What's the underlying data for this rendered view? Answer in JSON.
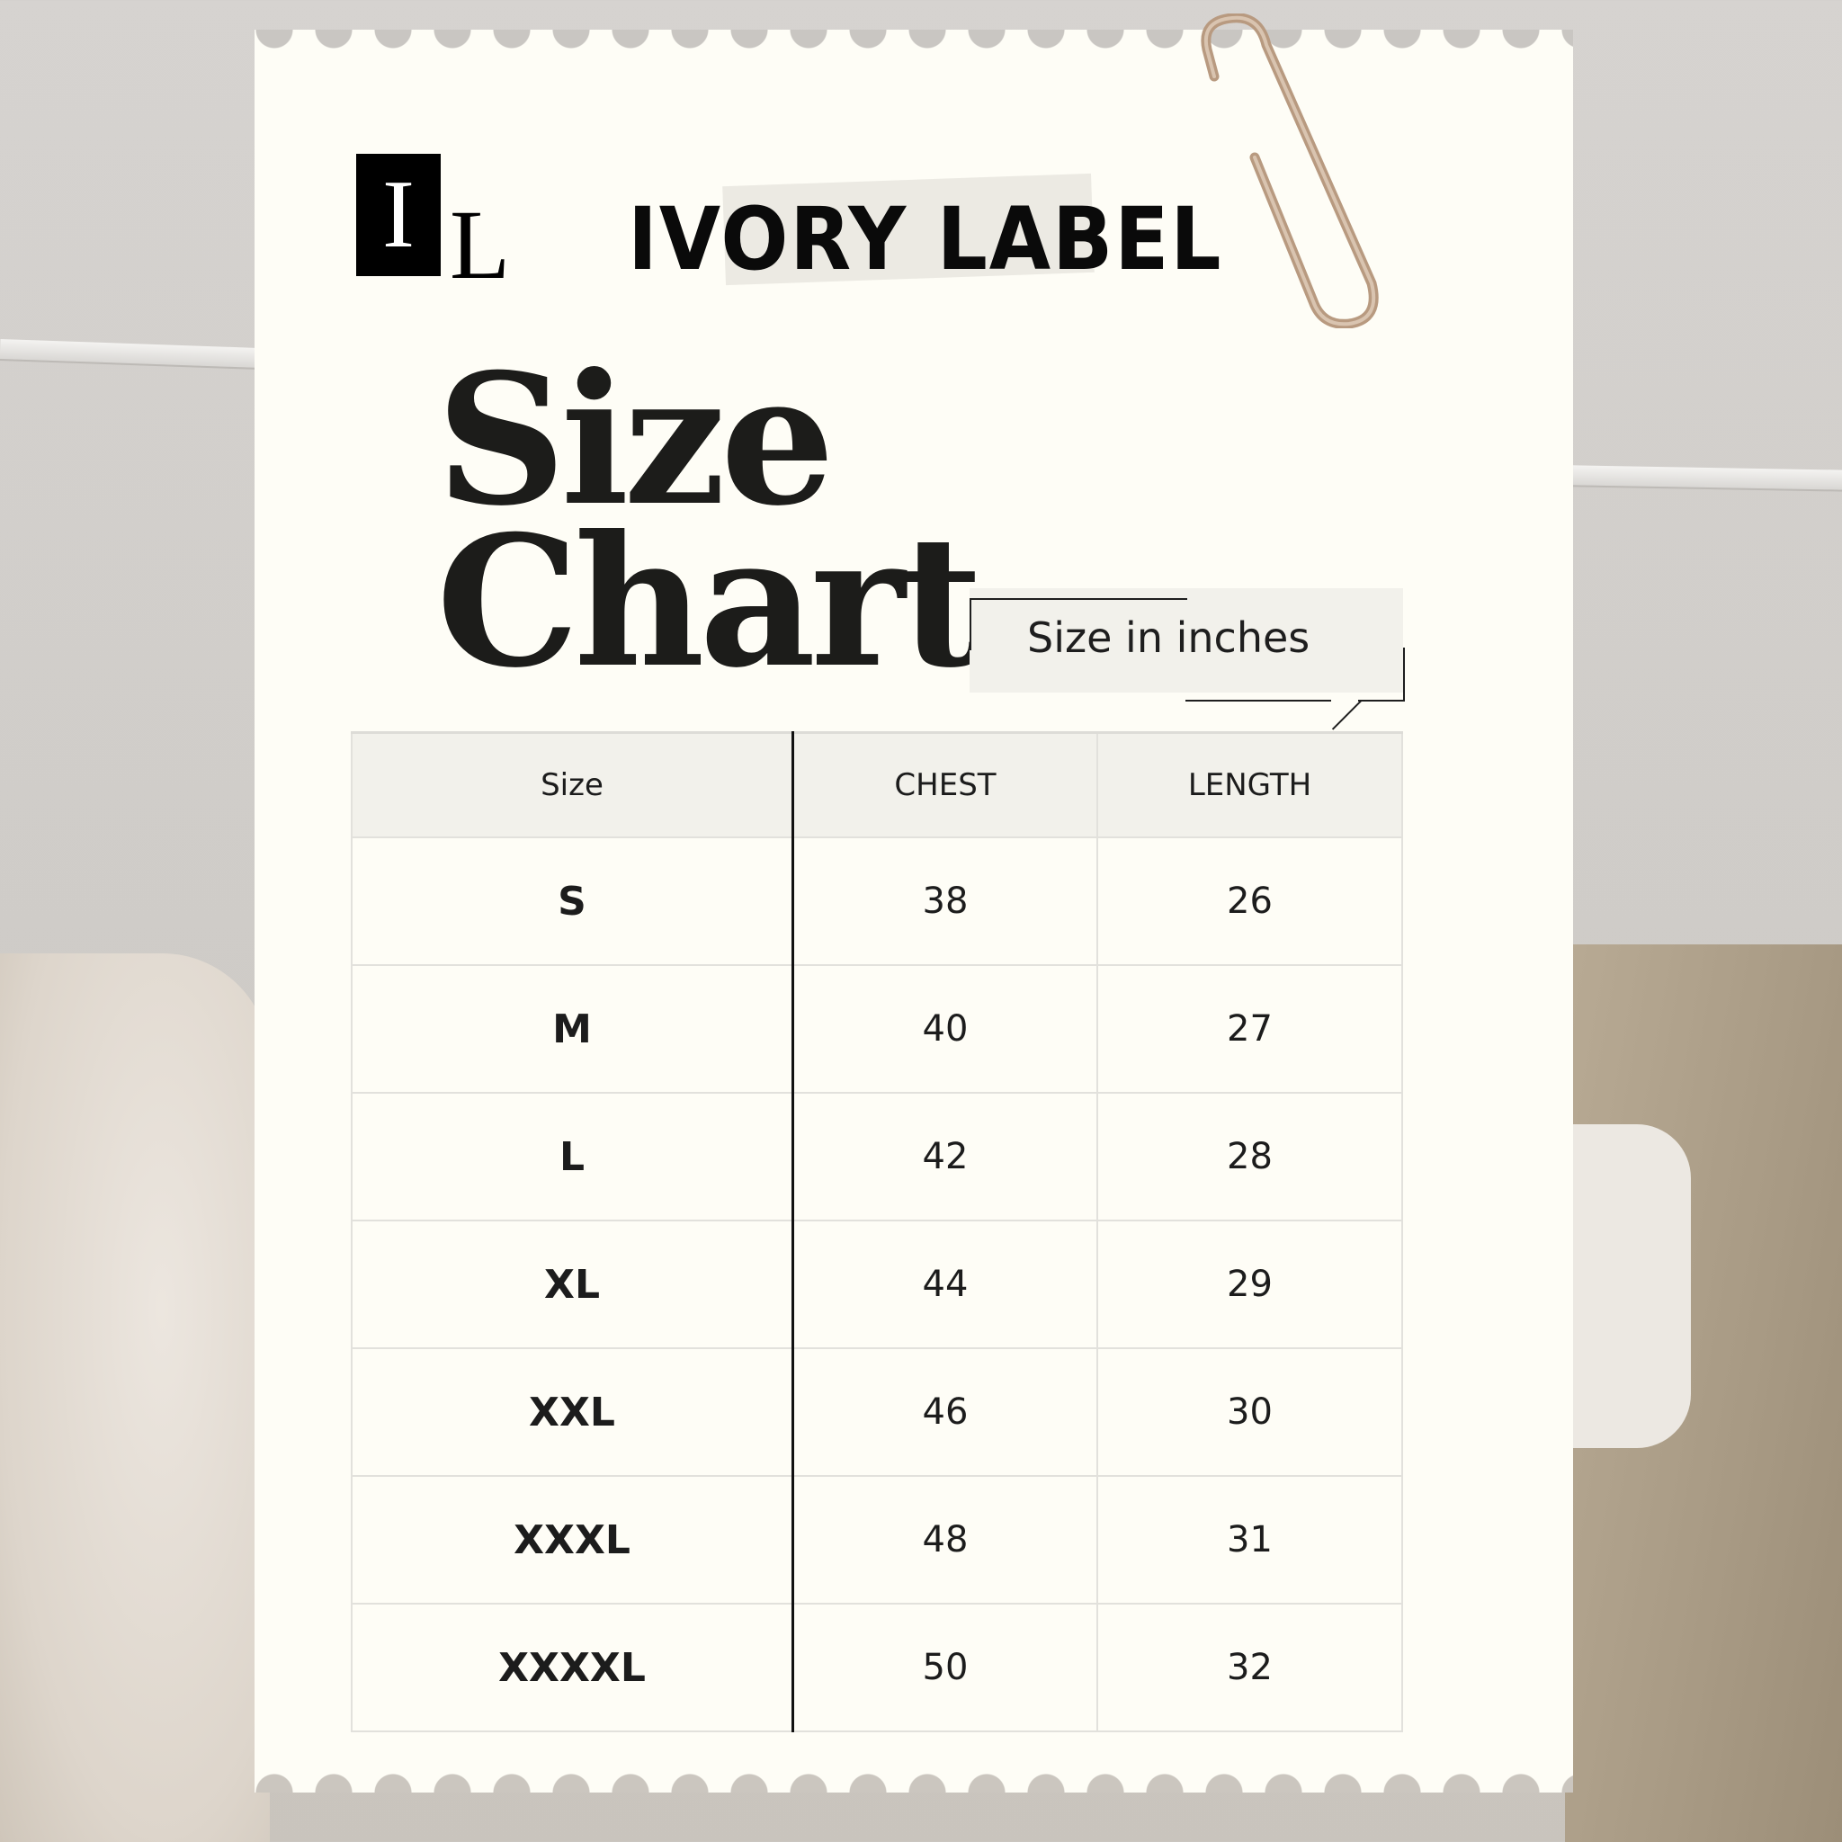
{
  "brand": {
    "monogram_top": "I",
    "monogram_bottom": "L",
    "name": "IVORY LABEL"
  },
  "title": {
    "line1": "Size",
    "line2": "Chart"
  },
  "unit_note": "Size in inches",
  "table": {
    "headers": [
      "Size",
      "CHEST",
      "LENGTH"
    ],
    "rows": [
      [
        "S",
        "38",
        "26"
      ],
      [
        "M",
        "40",
        "27"
      ],
      [
        "L",
        "42",
        "28"
      ],
      [
        "XL",
        "44",
        "29"
      ],
      [
        "XXL",
        "46",
        "30"
      ],
      [
        "XXXL",
        "48",
        "31"
      ],
      [
        "XXXXL",
        "50",
        "32"
      ]
    ]
  },
  "colors": {
    "paper": "#fefdf6",
    "header_bg": "#f2f1eb",
    "text": "#1c1c1a",
    "clip": "#b89a80"
  }
}
